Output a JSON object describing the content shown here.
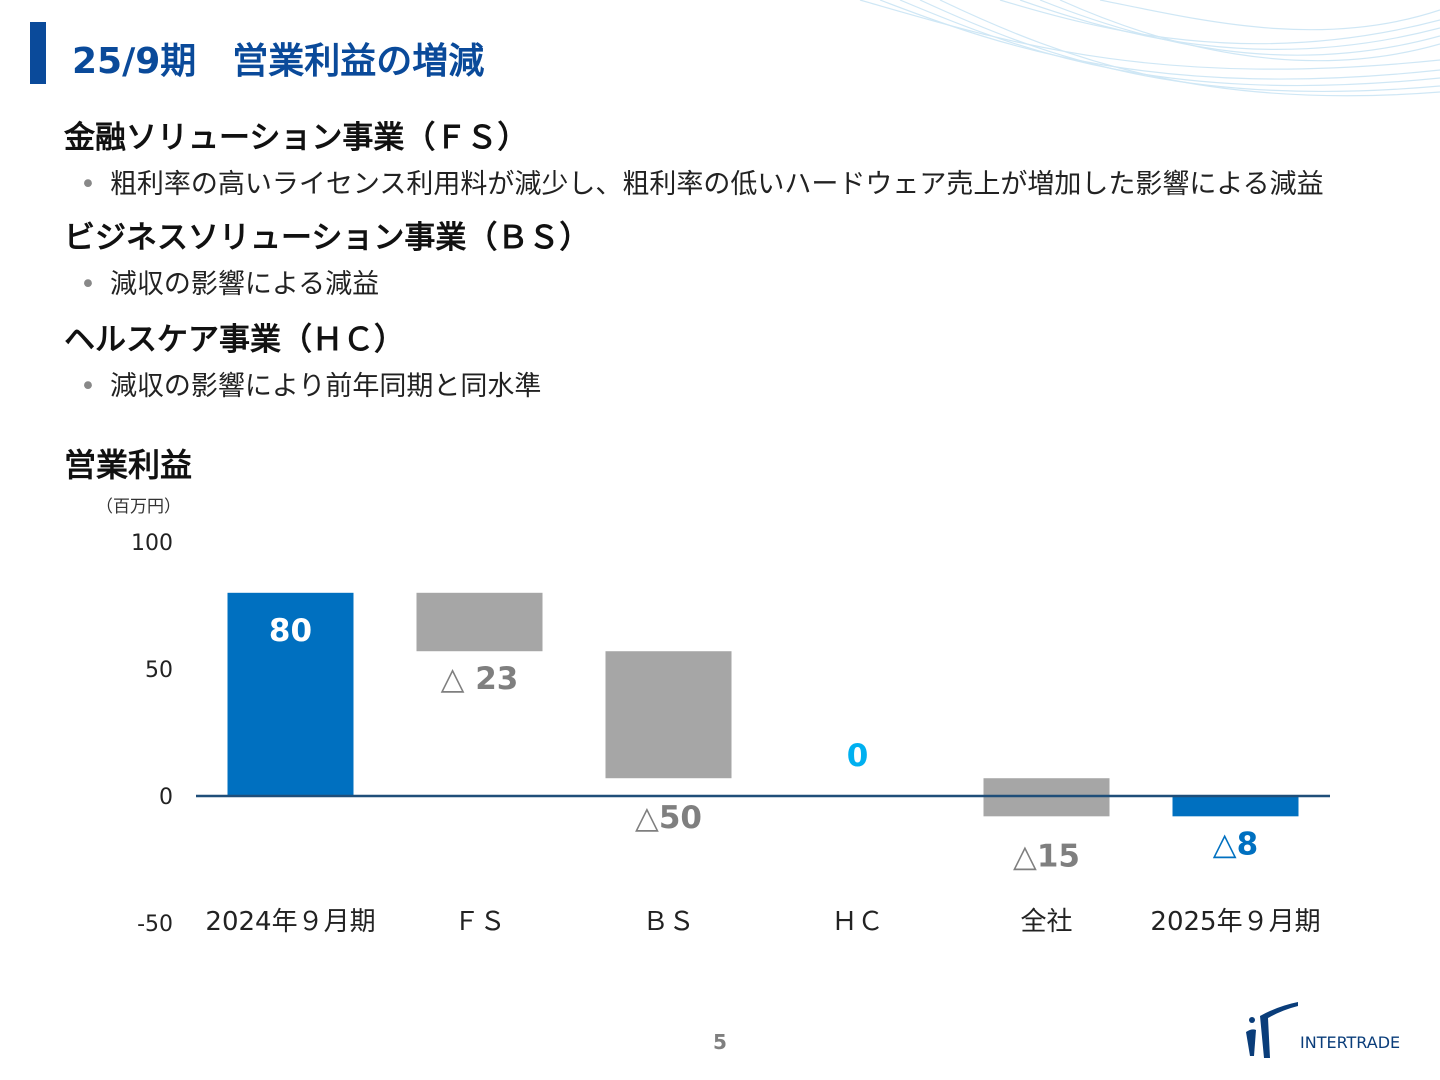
{
  "header": {
    "title": "25/9期　営業利益の増減"
  },
  "segments": [
    {
      "heading": "金融ソリューション事業（ＦＳ）",
      "bullet": "粗利率の高いライセンス利用料が減少し、粗利率の低いハードウェア売上が増加した影響による減益"
    },
    {
      "heading": "ビジネスソリューション事業（ＢＳ）",
      "bullet": "減収の影響による減益"
    },
    {
      "heading": "ヘルスケア事業（ＨＣ）",
      "bullet": "減収の影響により前年同期と同水準"
    }
  ],
  "chart_section": {
    "title": "営業利益",
    "unit": "（百万円）"
  },
  "chart_data": {
    "type": "bar",
    "subtype": "waterfall",
    "title": "営業利益",
    "ylabel": "（百万円）",
    "ylim": [
      -50,
      100
    ],
    "yticks": [
      100,
      50,
      0,
      -50
    ],
    "categories": [
      "2024年９月期",
      "ＦＳ",
      "ＢＳ",
      "ＨＣ",
      "全社",
      "2025年９月期"
    ],
    "bars": [
      {
        "category": "2024年９月期",
        "kind": "total",
        "start": 0,
        "end": 80,
        "label": "80",
        "color": "#0070c0"
      },
      {
        "category": "ＦＳ",
        "kind": "delta",
        "start": 80,
        "end": 57,
        "label": "△ 23",
        "color": "#a6a6a6"
      },
      {
        "category": "ＢＳ",
        "kind": "delta",
        "start": 57,
        "end": 7,
        "label": "△50",
        "color": "#a6a6a6"
      },
      {
        "category": "ＨＣ",
        "kind": "delta",
        "start": 7,
        "end": 7,
        "label": "0",
        "color": "#a6a6a6"
      },
      {
        "category": "全社",
        "kind": "delta",
        "start": 7,
        "end": -8,
        "label": "△15",
        "color": "#a6a6a6"
      },
      {
        "category": "2025年９月期",
        "kind": "total",
        "start": 0,
        "end": -8,
        "label": "△8",
        "color": "#0070c0"
      }
    ],
    "label_colors": {
      "total_inside": "#ffffff",
      "delta": "#7f7f7f",
      "zero": "#00b0f0",
      "final": "#0070c0"
    },
    "axis_color": "#1f4e79"
  },
  "footer": {
    "page_number": "5",
    "logo_text": "INTERTRADE"
  }
}
